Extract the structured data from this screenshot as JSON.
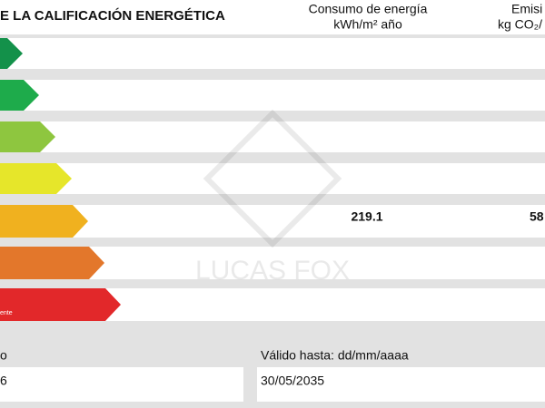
{
  "header": {
    "title": "E LA CALIFICACIÓN ENERGÉTICA",
    "consumption_label": [
      "Consumo de energía",
      "kWh/m² año"
    ],
    "emissions_label": [
      "Emisi",
      "kg CO₂/"
    ]
  },
  "ratings": {
    "last_label": "ente",
    "consumption_value": "219.1",
    "emissions_value": "58"
  },
  "watermark": "LUCAS FOX",
  "footer": {
    "left_label": "o",
    "left_value": "6",
    "right_label": "Válido hasta: dd/mm/aaaa",
    "right_value": "30/05/2035"
  }
}
